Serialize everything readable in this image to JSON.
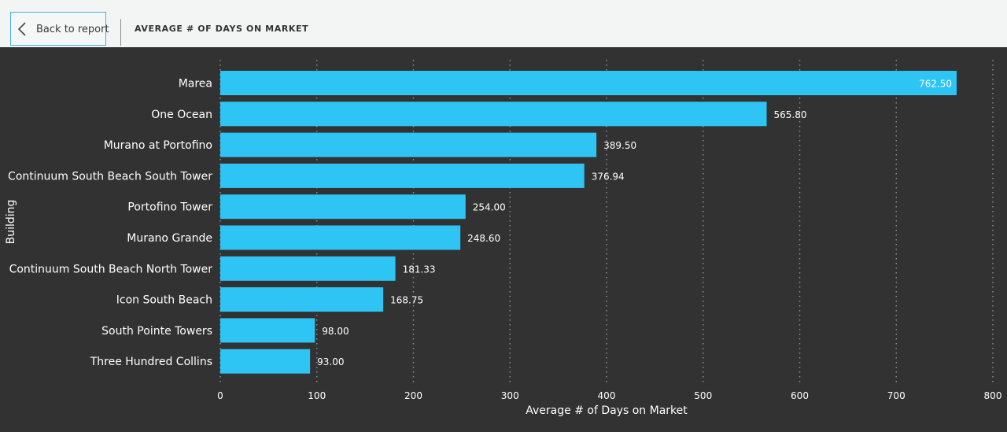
{
  "header": {
    "back_label": "Back to report",
    "page_title": "AVERAGE # OF DAYS ON MARKET"
  },
  "colors": {
    "bar": "#2ec5f5",
    "background": "#323232",
    "text": "#ffffff",
    "grid": "#8c8c8c"
  },
  "chart_data": {
    "type": "bar",
    "orientation": "horizontal",
    "categories": [
      "Marea",
      "One Ocean",
      "Murano at Portofino",
      "Continuum South Beach South Tower",
      "Portofino Tower",
      "Murano Grande",
      "Continuum South Beach North Tower",
      "Icon South Beach",
      "South Pointe Towers",
      "Three Hundred Collins"
    ],
    "values": [
      762.5,
      565.8,
      389.5,
      376.94,
      254.0,
      248.6,
      181.33,
      168.75,
      98.0,
      93.0
    ],
    "data_labels": [
      "762.50",
      "565.80",
      "389.50",
      "376.94",
      "254.00",
      "248.60",
      "181.33",
      "168.75",
      "98.00",
      "93.00"
    ],
    "xlabel": "Average # of Days on Market",
    "ylabel": "Building",
    "xlim": [
      0,
      800
    ],
    "xticks": [
      "0",
      "100",
      "200",
      "300",
      "400",
      "500",
      "600",
      "700",
      "800"
    ],
    "grid": "vertical-dotted"
  }
}
